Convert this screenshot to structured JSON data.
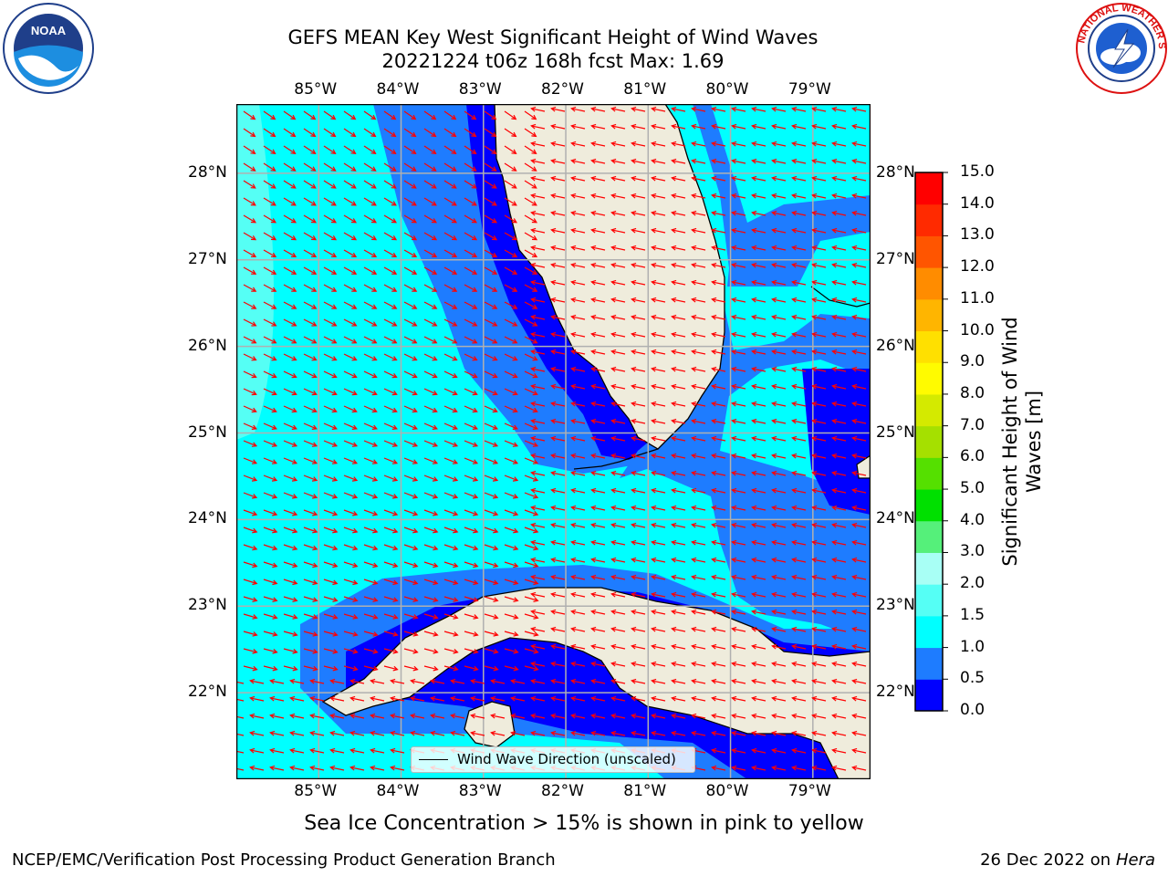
{
  "header": {
    "title_line1": "GEFS MEAN Key West Significant Height of Wind Waves",
    "title_line2": "20221224 t06z 168h fcst   Max: 1.69"
  },
  "logos": {
    "left": {
      "icon": "noaa-logo",
      "text": "NOAA",
      "ring_text": "NATIONAL OCEANIC AND ATMOSPHERIC ADMINISTRATION · U.S. DEPARTMENT OF COMMERCE"
    },
    "right": {
      "icon": "nws-logo",
      "ring_text": "NATIONAL WEATHER SERVICE"
    }
  },
  "map": {
    "lon_labels": [
      "85°W",
      "84°W",
      "83°W",
      "82°W",
      "81°W",
      "80°W",
      "79°W"
    ],
    "lat_labels": [
      "28°N",
      "27°N",
      "26°N",
      "25°N",
      "24°N",
      "23°N",
      "22°N"
    ],
    "extent": {
      "lon_min": -86.0,
      "lon_max": -78.3,
      "lat_min": 21.0,
      "lat_max": 28.8
    },
    "gridlines": true,
    "legend_label": "Wind Wave Direction (unscaled)"
  },
  "colorbar": {
    "label_line1": "Significant Height of Wind",
    "label_line2": "Waves [m]",
    "ticks": [
      "15.0",
      "14.0",
      "13.0",
      "12.0",
      "11.0",
      "10.0",
      "9.0",
      "8.0",
      "7.0",
      "6.0",
      "5.0",
      "4.0",
      "3.0",
      "2.0",
      "1.5",
      "1.0",
      "0.5",
      "0.0"
    ],
    "colors": [
      "#0000ff",
      "#1e7cff",
      "#00ffff",
      "#55fff5",
      "#a8fff5",
      "#55f07a",
      "#00e000",
      "#55e000",
      "#a5e000",
      "#d4ea00",
      "#fffb00",
      "#ffe000",
      "#ffb500",
      "#ff8c00",
      "#ff5500",
      "#ff2a00",
      "#ff0000"
    ]
  },
  "colors": {
    "land": "#efecdc",
    "arrows": "#ff0000",
    "grid": "#b0b0b0"
  },
  "note": "Sea Ice Concentration > 15% is shown in pink to yellow",
  "footer": {
    "left": "NCEP/EMC/Verification Post Processing Product Generation Branch",
    "date": "26 Dec 2022 on",
    "machine": "Hera"
  }
}
